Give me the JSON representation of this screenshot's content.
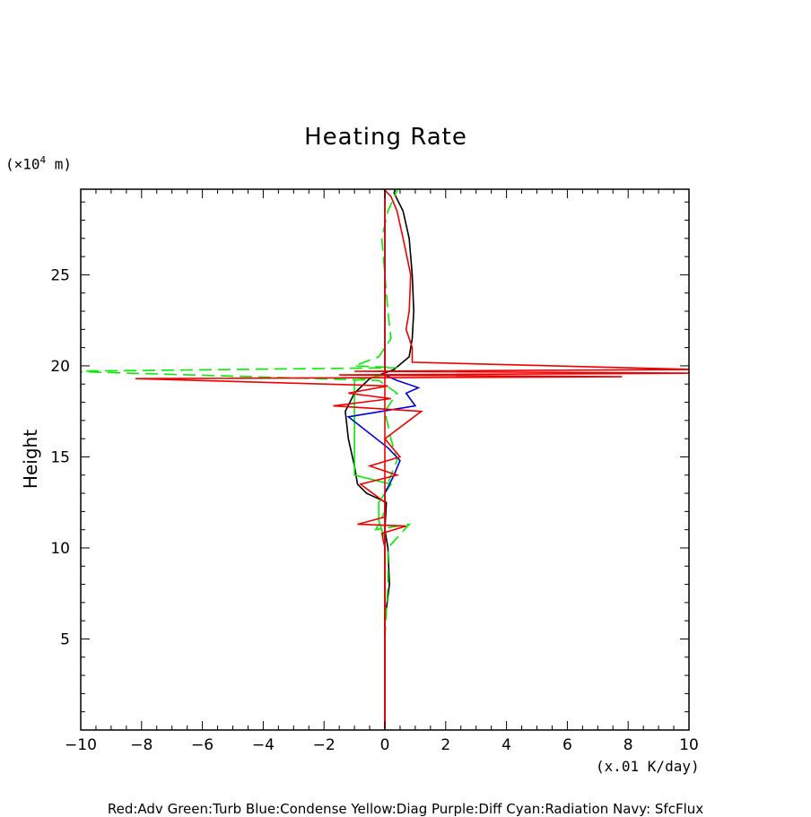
{
  "header": {
    "title": "Heating Rate",
    "y_unit_prefix": "(×10",
    "y_unit_exp": "4",
    "y_unit_suffix": " m)",
    "x_unit": "(x.01 K/day)",
    "legend_text": "Red:Adv  Green:Turb  Blue:Condense  Yellow:Diag  Purple:Diff  Cyan:Radiation  Navy: SfcFlux"
  },
  "chart_data": {
    "type": "line",
    "title": "Heating Rate",
    "xlabel": "(x.01 K/day)",
    "ylabel": "Height",
    "xlim": [
      -10,
      10
    ],
    "ylim": [
      0,
      30
    ],
    "x_ticks": [
      -10,
      -8,
      -6,
      -4,
      -2,
      0,
      2,
      4,
      6,
      8,
      10
    ],
    "x_tick_labels": [
      "−10",
      "−8",
      "−6",
      "−4",
      "−2",
      "0",
      "2",
      "4",
      "6",
      "8",
      "10"
    ],
    "y_ticks": [
      5,
      10,
      15,
      20,
      25
    ],
    "y_tick_labels": [
      "5",
      "10",
      "15",
      "20",
      "25"
    ],
    "grid": false,
    "series": [
      {
        "color": "#000000",
        "dash": "solid",
        "points": [
          [
            0,
            0
          ],
          [
            0,
            6
          ],
          [
            0.15,
            8
          ],
          [
            0.1,
            10
          ],
          [
            0,
            11
          ],
          [
            0.05,
            12.5
          ],
          [
            -0.6,
            13
          ],
          [
            -0.9,
            13.5
          ],
          [
            -1.0,
            14.5
          ],
          [
            -1.2,
            16
          ],
          [
            -1.3,
            17.5
          ],
          [
            -1.0,
            18.5
          ],
          [
            -0.5,
            19.3
          ],
          [
            0.3,
            19.8
          ],
          [
            0.8,
            20.5
          ],
          [
            0.9,
            21.5
          ],
          [
            0.95,
            23
          ],
          [
            0.9,
            25
          ],
          [
            0.8,
            27
          ],
          [
            0.6,
            28.5
          ],
          [
            0.3,
            29.5
          ],
          [
            0.4,
            30
          ]
        ]
      },
      {
        "color": "#00ee00",
        "dash": "solid",
        "points": [
          [
            0,
            0
          ],
          [
            0,
            10.5
          ],
          [
            -0.2,
            11.5
          ],
          [
            -0.2,
            12.5
          ],
          [
            0.2,
            13.5
          ],
          [
            -1.0,
            14
          ],
          [
            -1.0,
            16
          ],
          [
            -1.0,
            18
          ],
          [
            -1.0,
            19.2
          ],
          [
            0,
            19.5
          ],
          [
            0,
            30
          ]
        ]
      },
      {
        "color": "#00ee00",
        "dash": "dashed",
        "points": [
          [
            0,
            5
          ],
          [
            0.1,
            8
          ],
          [
            0.1,
            10
          ],
          [
            0.8,
            11.3
          ],
          [
            -0.3,
            11
          ],
          [
            0,
            12
          ],
          [
            0,
            13
          ],
          [
            0.2,
            14
          ],
          [
            0.4,
            14.8
          ],
          [
            0.2,
            16
          ],
          [
            0,
            17.5
          ],
          [
            0.4,
            18.5
          ],
          [
            -0.2,
            19.2
          ],
          [
            -10.5,
            19.7
          ],
          [
            0.4,
            19.9
          ],
          [
            -1.0,
            20
          ],
          [
            -0.2,
            20.5
          ],
          [
            0.2,
            21.5
          ],
          [
            0.1,
            23
          ],
          [
            0,
            25
          ],
          [
            -0.1,
            27
          ],
          [
            0.1,
            28.5
          ],
          [
            0.5,
            30
          ]
        ]
      },
      {
        "color": "#0000dd",
        "dash": "solid",
        "points": [
          [
            0,
            0
          ],
          [
            0,
            13
          ],
          [
            0.3,
            14
          ],
          [
            0.5,
            14.8
          ],
          [
            0.1,
            15.5
          ],
          [
            -1.2,
            17.2
          ],
          [
            1.0,
            17.8
          ],
          [
            0.7,
            18.5
          ],
          [
            1.1,
            18.8
          ],
          [
            0.4,
            19.2
          ],
          [
            0,
            19.5
          ],
          [
            0,
            30
          ]
        ]
      },
      {
        "color": "#ee0000",
        "dash": "solid",
        "points": [
          [
            0,
            0
          ],
          [
            0,
            10
          ],
          [
            -0.1,
            10.8
          ],
          [
            0.7,
            11.2
          ],
          [
            -0.9,
            11.3
          ],
          [
            0,
            11.7
          ],
          [
            0,
            12.5
          ],
          [
            -0.8,
            13.5
          ],
          [
            0.4,
            14
          ],
          [
            -0.5,
            14.5
          ],
          [
            0.5,
            15
          ],
          [
            0,
            16
          ],
          [
            1.2,
            17.5
          ],
          [
            -1.7,
            17.8
          ],
          [
            0.2,
            18.2
          ],
          [
            -1.2,
            18.5
          ],
          [
            0.1,
            18.9
          ],
          [
            -8.2,
            19.3
          ],
          [
            7.8,
            19.4
          ],
          [
            -1.5,
            19.5
          ],
          [
            10.2,
            19.6
          ],
          [
            -1.0,
            19.7
          ],
          [
            10.2,
            19.8
          ],
          [
            0.9,
            20.2
          ],
          [
            0.9,
            21
          ],
          [
            0.7,
            22
          ],
          [
            0.8,
            23
          ],
          [
            0.85,
            25
          ],
          [
            0.6,
            27
          ],
          [
            0.4,
            28.5
          ],
          [
            0.2,
            29.3
          ],
          [
            -0.2,
            30
          ]
        ]
      },
      {
        "color": "#ee0000",
        "dash": "solid",
        "points": [
          [
            0,
            0
          ],
          [
            0,
            30
          ]
        ]
      }
    ]
  }
}
